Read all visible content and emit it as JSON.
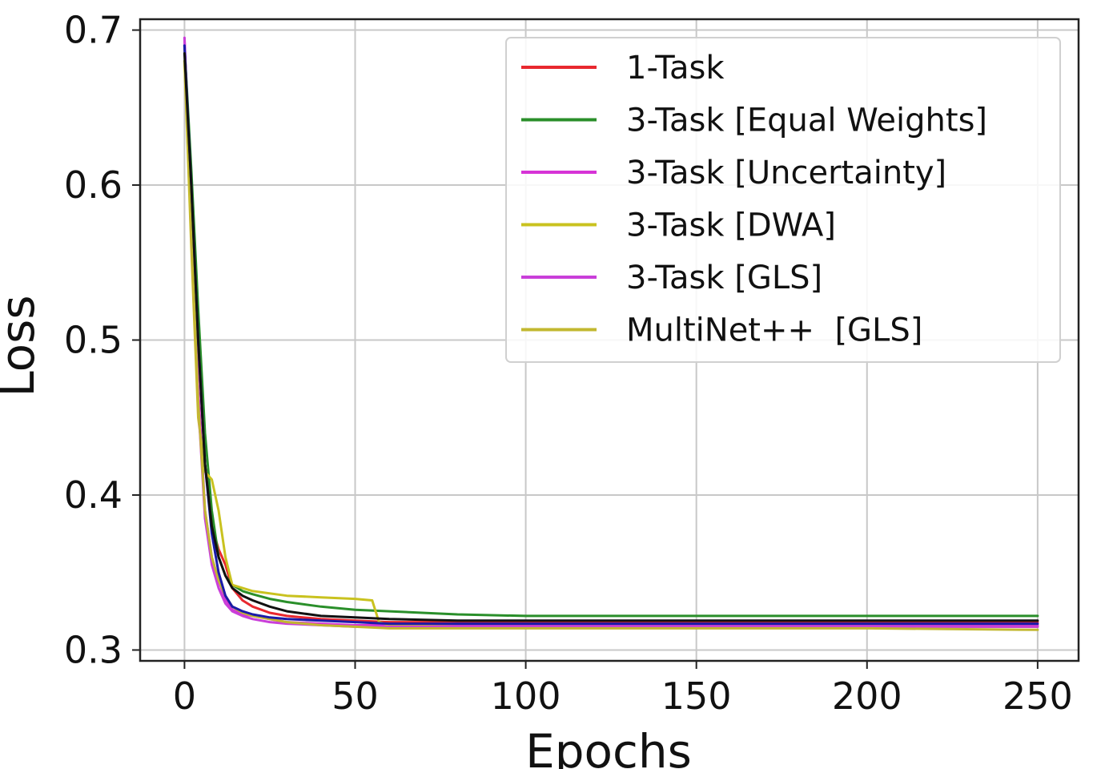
{
  "chart_data": {
    "type": "line",
    "xlabel": "Epochs",
    "ylabel": "Loss",
    "xlim": [
      -13,
      262
    ],
    "ylim": [
      0.293,
      0.707
    ],
    "xticks": [
      0,
      50,
      100,
      150,
      200,
      250
    ],
    "yticks": [
      0.3,
      0.4,
      0.5,
      0.6,
      0.7
    ],
    "xtick_labels": [
      "0",
      "50",
      "100",
      "150",
      "200",
      "250"
    ],
    "ytick_labels": [
      "0.3",
      "0.4",
      "0.5",
      "0.6",
      "0.7"
    ],
    "grid": true,
    "legend_position": "top-right",
    "series": [
      {
        "name": "1-Task",
        "color": "#e8282f",
        "legend": true,
        "x": [
          0,
          2,
          4,
          6,
          8,
          10,
          12,
          14,
          17,
          20,
          25,
          30,
          40,
          50,
          60,
          80,
          100,
          150,
          200,
          250
        ],
        "y": [
          0.69,
          0.6,
          0.5,
          0.42,
          0.38,
          0.365,
          0.355,
          0.34,
          0.332,
          0.328,
          0.324,
          0.322,
          0.32,
          0.319,
          0.318,
          0.318,
          0.318,
          0.318,
          0.318,
          0.318
        ]
      },
      {
        "name": "3-Task [Equal Weights]",
        "color": "#2a8f2a",
        "legend": true,
        "x": [
          0,
          2,
          4,
          6,
          8,
          10,
          12,
          14,
          17,
          20,
          25,
          30,
          40,
          50,
          60,
          80,
          100,
          150,
          200,
          250
        ],
        "y": [
          0.69,
          0.61,
          0.52,
          0.44,
          0.39,
          0.36,
          0.348,
          0.342,
          0.338,
          0.336,
          0.333,
          0.331,
          0.328,
          0.326,
          0.325,
          0.323,
          0.322,
          0.322,
          0.322,
          0.322
        ]
      },
      {
        "name": "3-Task [Uncertainty]",
        "color": "#d633d6",
        "legend": true,
        "x": [
          0,
          2,
          4,
          6,
          8,
          10,
          12,
          14,
          17,
          20,
          25,
          30,
          40,
          50,
          60,
          80,
          100,
          150,
          200,
          250
        ],
        "y": [
          0.695,
          0.58,
          0.47,
          0.39,
          0.36,
          0.345,
          0.333,
          0.326,
          0.323,
          0.322,
          0.32,
          0.318,
          0.317,
          0.316,
          0.316,
          0.316,
          0.316,
          0.316,
          0.316,
          0.316
        ]
      },
      {
        "name": "3-Task [DWA]",
        "color": "#c9c21f",
        "legend": true,
        "x": [
          0,
          2,
          4,
          6,
          8,
          10,
          12,
          14,
          17,
          20,
          30,
          40,
          50,
          55,
          57,
          60,
          80,
          100,
          150,
          200,
          250
        ],
        "y": [
          0.68,
          0.56,
          0.45,
          0.415,
          0.41,
          0.39,
          0.36,
          0.342,
          0.34,
          0.338,
          0.335,
          0.334,
          0.333,
          0.332,
          0.318,
          0.316,
          0.315,
          0.315,
          0.315,
          0.315,
          0.315
        ]
      },
      {
        "name": "3-Task [GLS]",
        "color": "#c93fd9",
        "legend": true,
        "x": [
          0,
          2,
          4,
          6,
          8,
          10,
          12,
          14,
          17,
          20,
          25,
          30,
          40,
          50,
          60,
          80,
          100,
          150,
          200,
          250
        ],
        "y": [
          0.695,
          0.57,
          0.46,
          0.385,
          0.355,
          0.34,
          0.33,
          0.325,
          0.322,
          0.32,
          0.318,
          0.317,
          0.316,
          0.315,
          0.315,
          0.315,
          0.315,
          0.315,
          0.315,
          0.315
        ]
      },
      {
        "name": "MultiNet++  [GLS]",
        "color": "#c2b830",
        "legend": true,
        "x": [
          0,
          2,
          4,
          6,
          8,
          10,
          12,
          14,
          17,
          20,
          25,
          30,
          40,
          50,
          60,
          80,
          100,
          150,
          200,
          250
        ],
        "y": [
          0.68,
          0.57,
          0.46,
          0.39,
          0.36,
          0.345,
          0.335,
          0.328,
          0.324,
          0.322,
          0.32,
          0.318,
          0.316,
          0.315,
          0.314,
          0.314,
          0.314,
          0.314,
          0.314,
          0.313
        ]
      },
      {
        "name": "",
        "color": "#1a1aa8",
        "legend": false,
        "x": [
          0,
          2,
          4,
          6,
          8,
          10,
          12,
          14,
          17,
          20,
          25,
          30,
          40,
          50,
          60,
          80,
          100,
          150,
          200,
          250
        ],
        "y": [
          0.69,
          0.6,
          0.5,
          0.42,
          0.375,
          0.35,
          0.335,
          0.328,
          0.325,
          0.323,
          0.321,
          0.32,
          0.319,
          0.318,
          0.317,
          0.317,
          0.317,
          0.317,
          0.317,
          0.317
        ]
      },
      {
        "name": "",
        "color": "#111111",
        "legend": false,
        "x": [
          0,
          2,
          4,
          6,
          8,
          10,
          12,
          14,
          17,
          20,
          25,
          30,
          40,
          50,
          60,
          80,
          100,
          150,
          200,
          250
        ],
        "y": [
          0.685,
          0.6,
          0.5,
          0.42,
          0.38,
          0.36,
          0.348,
          0.34,
          0.335,
          0.332,
          0.328,
          0.325,
          0.322,
          0.321,
          0.32,
          0.319,
          0.319,
          0.319,
          0.319,
          0.319
        ]
      }
    ]
  }
}
